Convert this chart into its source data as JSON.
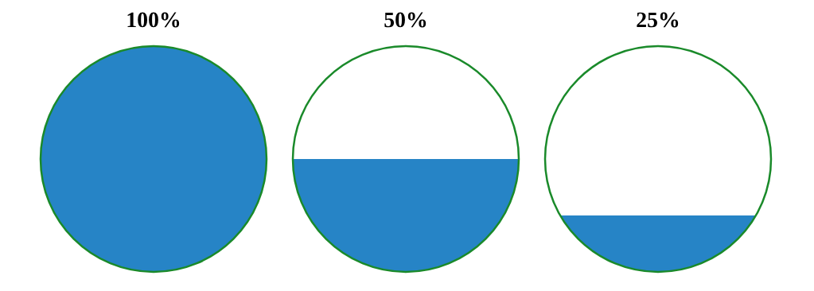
{
  "chart_data": [
    {
      "type": "other",
      "values": [
        100
      ],
      "value_labels": [
        "100%"
      ],
      "color": "#2684c6"
    },
    {
      "type": "other",
      "values": [
        50
      ],
      "value_labels": [
        "50%"
      ],
      "color": "#2684c6"
    },
    {
      "type": "other",
      "values": [
        25
      ],
      "value_labels": [
        "25%"
      ],
      "color": "#2684c6"
    }
  ]
}
